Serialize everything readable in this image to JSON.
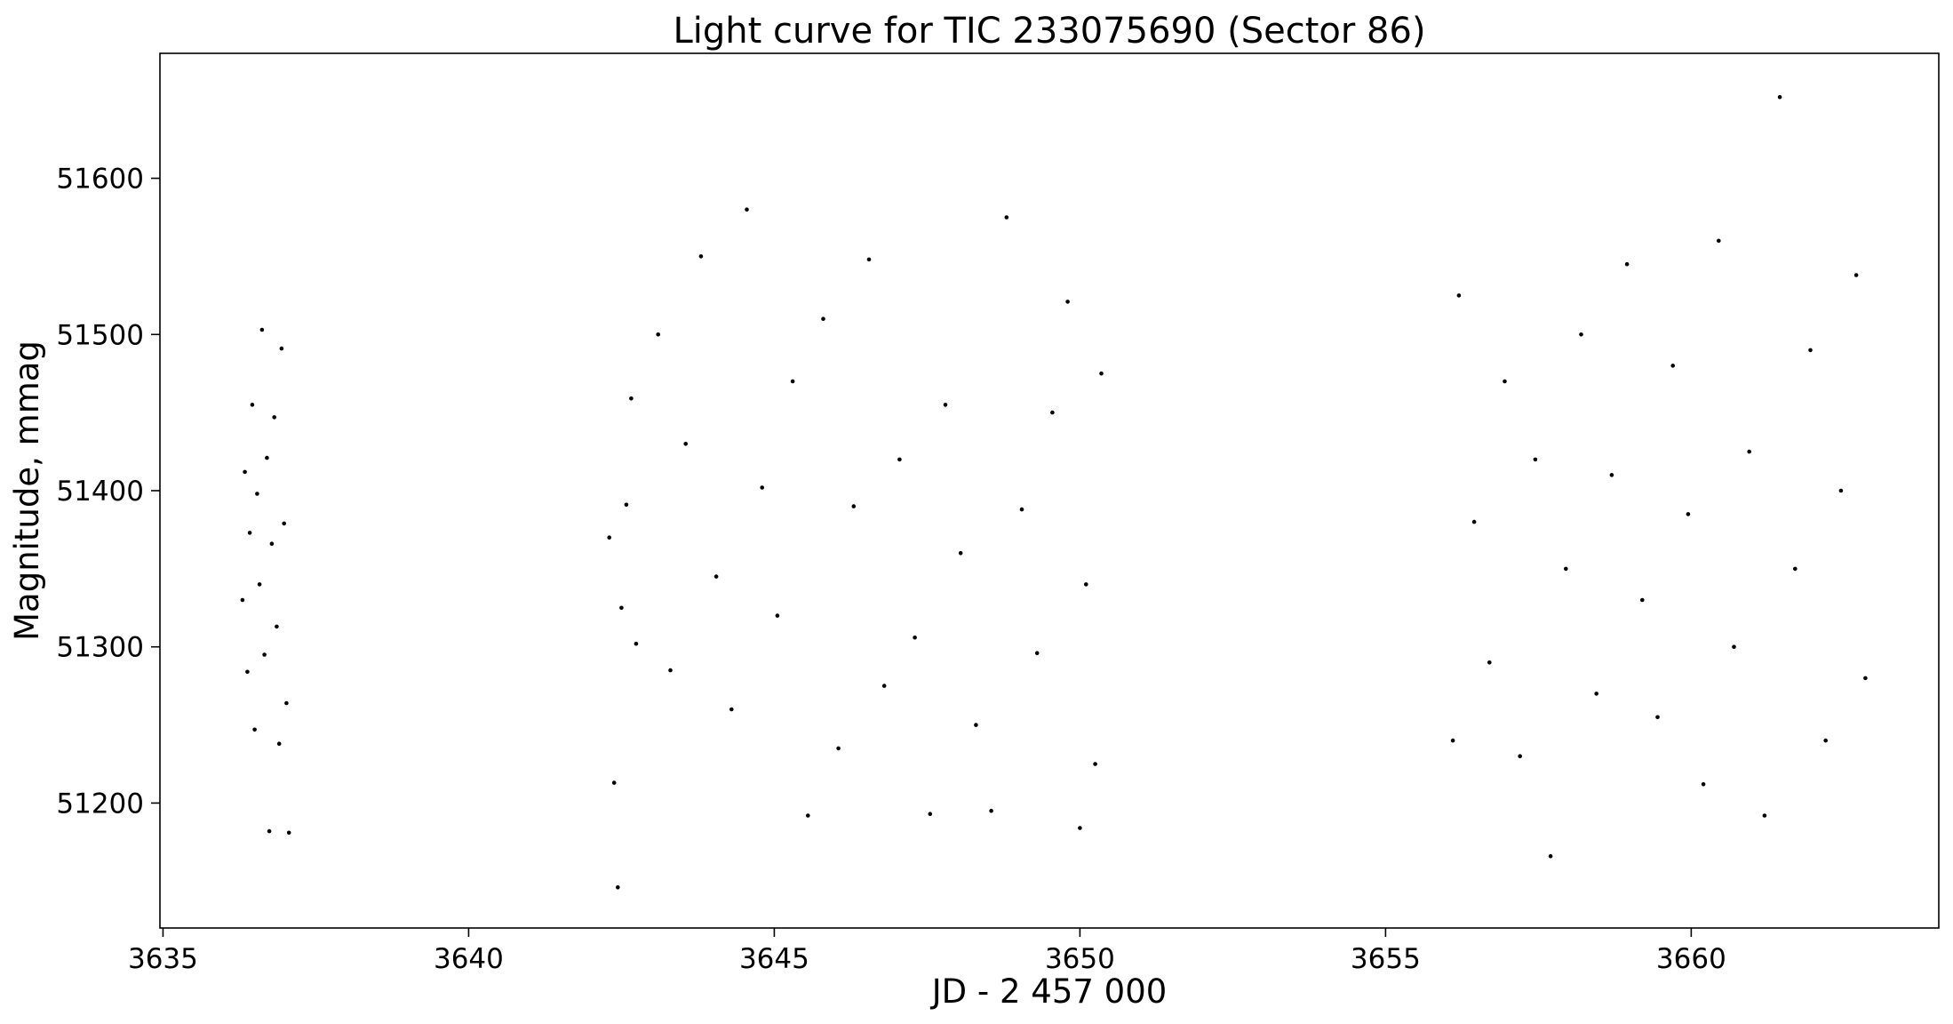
{
  "chart_data": {
    "type": "scatter",
    "title": "Light curve for TIC 233075690 (Sector 86)",
    "xlabel": "JD - 2 457 000",
    "ylabel": "Magnitude, mmag",
    "xlim": [
      3634.95,
      3664.05
    ],
    "ylim": [
      51120,
      51680
    ],
    "x_ticks": [
      3635,
      3640,
      3645,
      3650,
      3655,
      3660
    ],
    "x_tick_labels": [
      "3635",
      "3640",
      "3645",
      "3650",
      "3655",
      "3660"
    ],
    "y_ticks": [
      51200,
      51300,
      51400,
      51500,
      51600
    ],
    "y_tick_labels": [
      "51200",
      "51300",
      "51400",
      "51500",
      "51600"
    ],
    "grid": false,
    "marker_color": "#000000",
    "series": [
      {
        "values": [
          [
            3636.3,
            51330
          ],
          [
            3636.34,
            51412
          ],
          [
            3636.38,
            51284
          ],
          [
            3636.42,
            51373
          ],
          [
            3636.46,
            51455
          ],
          [
            3636.5,
            51247
          ],
          [
            3636.54,
            51398
          ],
          [
            3636.58,
            51340
          ],
          [
            3636.62,
            51503
          ],
          [
            3636.66,
            51295
          ],
          [
            3636.7,
            51421
          ],
          [
            3636.74,
            51182
          ],
          [
            3636.78,
            51366
          ],
          [
            3636.82,
            51447
          ],
          [
            3636.86,
            51313
          ],
          [
            3636.9,
            51238
          ],
          [
            3636.94,
            51491
          ],
          [
            3636.98,
            51379
          ],
          [
            3637.02,
            51264
          ],
          [
            3637.06,
            51181
          ],
          [
            3642.3,
            51370
          ],
          [
            3642.38,
            51213
          ],
          [
            3642.44,
            51146
          ],
          [
            3642.5,
            51325
          ],
          [
            3642.58,
            51391
          ],
          [
            3642.66,
            51459
          ],
          [
            3642.74,
            51302
          ],
          [
            3643.1,
            51500
          ],
          [
            3643.3,
            51285
          ],
          [
            3643.55,
            51430
          ],
          [
            3643.8,
            51550
          ],
          [
            3644.05,
            51345
          ],
          [
            3644.3,
            51260
          ],
          [
            3644.55,
            51580
          ],
          [
            3644.8,
            51402
          ],
          [
            3645.05,
            51320
          ],
          [
            3645.3,
            51470
          ],
          [
            3645.55,
            51192
          ],
          [
            3645.8,
            51510
          ],
          [
            3646.05,
            51235
          ],
          [
            3646.3,
            51390
          ],
          [
            3646.55,
            51548
          ],
          [
            3646.8,
            51275
          ],
          [
            3647.05,
            51420
          ],
          [
            3647.3,
            51306
          ],
          [
            3647.55,
            51193
          ],
          [
            3647.8,
            51455
          ],
          [
            3648.05,
            51360
          ],
          [
            3648.3,
            51250
          ],
          [
            3648.55,
            51195
          ],
          [
            3648.8,
            51575
          ],
          [
            3649.05,
            51388
          ],
          [
            3649.3,
            51296
          ],
          [
            3649.55,
            51450
          ],
          [
            3649.8,
            51521
          ],
          [
            3650.0,
            51184
          ],
          [
            3650.1,
            51340
          ],
          [
            3650.25,
            51225
          ],
          [
            3650.35,
            51475
          ],
          [
            3656.1,
            51240
          ],
          [
            3656.2,
            51525
          ],
          [
            3656.45,
            51380
          ],
          [
            3656.7,
            51290
          ],
          [
            3656.95,
            51470
          ],
          [
            3657.2,
            51230
          ],
          [
            3657.45,
            51420
          ],
          [
            3657.7,
            51166
          ],
          [
            3657.95,
            51350
          ],
          [
            3658.2,
            51500
          ],
          [
            3658.45,
            51270
          ],
          [
            3658.7,
            51410
          ],
          [
            3658.95,
            51545
          ],
          [
            3659.2,
            51330
          ],
          [
            3659.45,
            51255
          ],
          [
            3659.7,
            51480
          ],
          [
            3659.95,
            51385
          ],
          [
            3660.2,
            51212
          ],
          [
            3660.45,
            51560
          ],
          [
            3660.7,
            51300
          ],
          [
            3660.95,
            51425
          ],
          [
            3661.2,
            51192
          ],
          [
            3661.45,
            51652
          ],
          [
            3661.7,
            51350
          ],
          [
            3661.95,
            51490
          ],
          [
            3662.2,
            51240
          ],
          [
            3662.45,
            51400
          ],
          [
            3662.7,
            51538
          ],
          [
            3662.85,
            51280
          ]
        ]
      }
    ]
  }
}
